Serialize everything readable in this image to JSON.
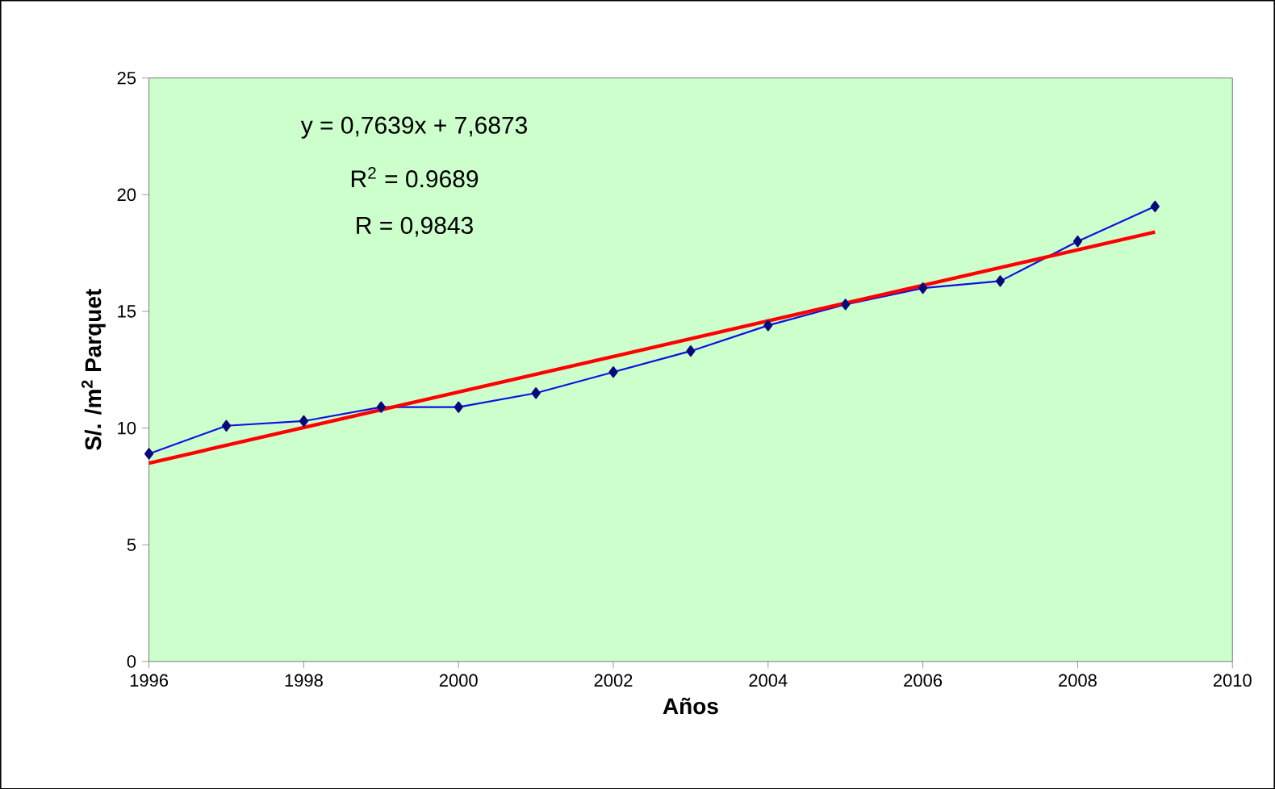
{
  "chart_data": {
    "type": "line",
    "xlabel": "Años",
    "ylabel": "S/. /m$^{2}$ Parquet",
    "annotations": [
      "y = 0,7639x  + 7,6873",
      "R$^{2}$ = 0.9689",
      "R = 0,9843"
    ],
    "x": [
      1996,
      1997,
      1998,
      1999,
      2000,
      2001,
      2002,
      2003,
      2004,
      2005,
      2006,
      2007,
      2008,
      2009
    ],
    "series": [
      {
        "color": "#1010e0",
        "marker": "diamond",
        "values": [
          8.9,
          10.1,
          10.3,
          10.9,
          10.9,
          11.5,
          12.4,
          13.3,
          14.4,
          15.3,
          16.0,
          16.3,
          18.0,
          19.5
        ]
      },
      {
        "type": "line",
        "color": "#ff0000",
        "marker": "none",
        "x": [
          1996,
          2009
        ],
        "values": [
          8.5,
          18.4
        ]
      }
    ],
    "xlim": [
      1996,
      2010
    ],
    "xticks": [
      1996,
      1998,
      2000,
      2002,
      2004,
      2006,
      2008,
      2010
    ],
    "ylim": [
      0,
      25
    ],
    "yticks": [
      0,
      5,
      10,
      15,
      20,
      25
    ],
    "grid": false
  }
}
